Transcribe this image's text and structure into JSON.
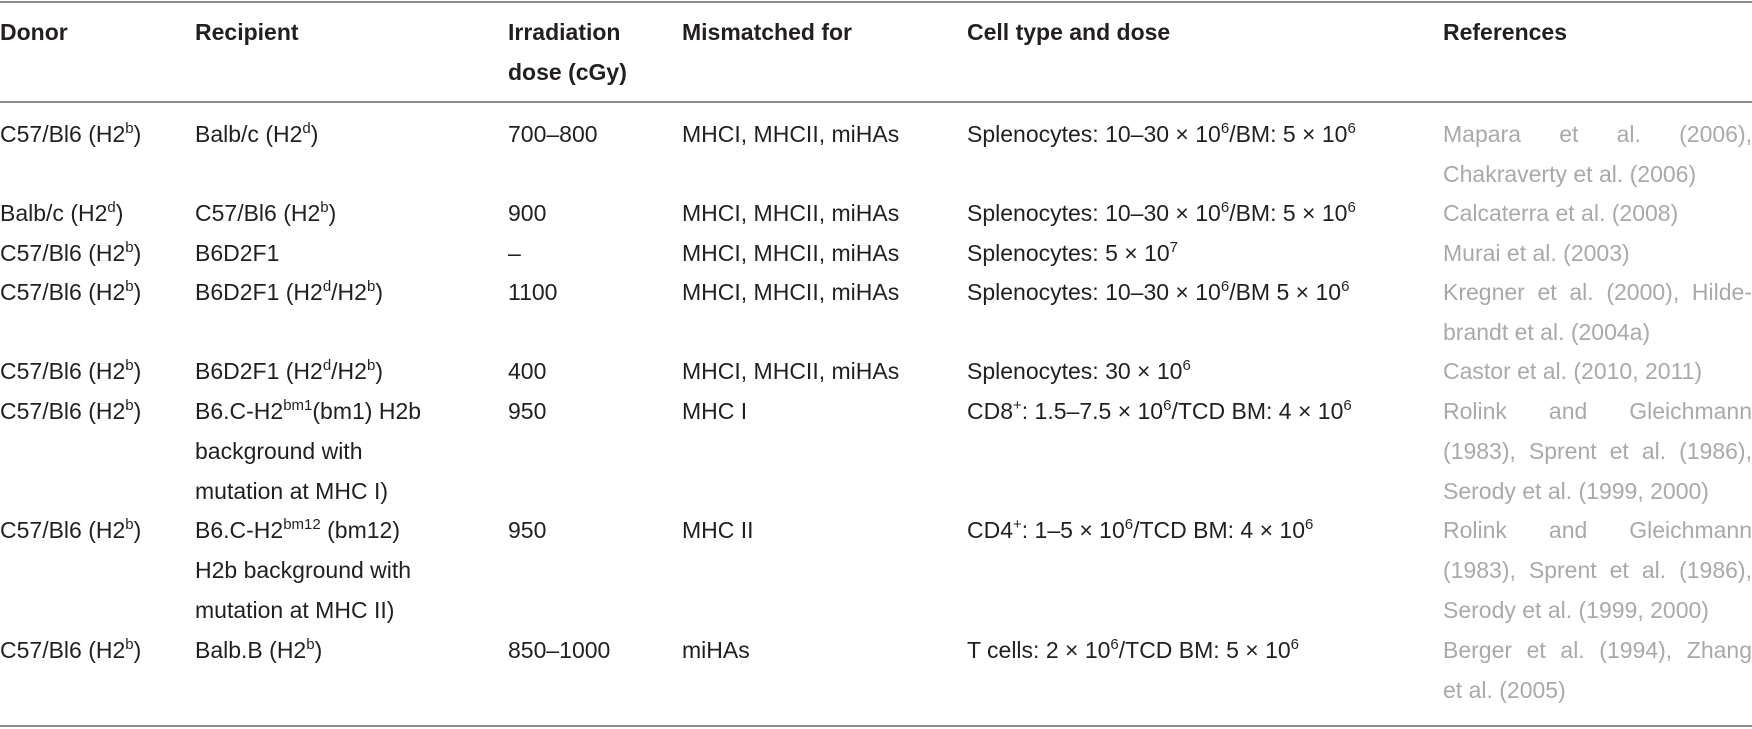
{
  "headers": {
    "donor": "Donor",
    "recipient": "Recipient",
    "irradiation_line1": "Irradiation",
    "irradiation_line2": "dose (cGy)",
    "mismatched": "Mismatched for",
    "cell_type": "Cell type and dose",
    "references": "References"
  },
  "rows": [
    {
      "donor": "C57/Bl6 (H2",
      "donor_sup": "b",
      "donor_end": ")",
      "recipient": "Balb/c (H2",
      "recipient_sup": "d",
      "recipient_end": ")",
      "dose": "700–800",
      "mismatch": "MHCI, MHCII, miHAs",
      "cell": "Splenocytes: 10–30 × 10",
      "cell_sup1": "6",
      "cell_mid": "/BM: 5 × 10",
      "cell_sup2": "6",
      "ref_line1_a": "Mapara",
      "ref_line1_b": "et",
      "ref_line1_c": "al.",
      "ref_line1_d": "(2006),",
      "ref_line2": "Chakraverty et al. (2006)"
    },
    {
      "donor": "Balb/c (H2",
      "donor_sup": "d",
      "donor_end": ")",
      "recipient": "C57/Bl6 (H2",
      "recipient_sup": "b",
      "recipient_end": ")",
      "dose": "900",
      "mismatch": "MHCI, MHCII, miHAs",
      "cell": "Splenocytes: 10–30 × 10",
      "cell_sup1": "6",
      "cell_mid": "/BM: 5 × 10",
      "cell_sup2": "6",
      "ref_line1": "Calcaterra et al. (2008)"
    },
    {
      "donor": "C57/Bl6 (H2",
      "donor_sup": "b",
      "donor_end": ")",
      "recipient": "B6D2F1",
      "dose": "–",
      "mismatch": "MHCI, MHCII, miHAs",
      "cell": "Splenocytes: 5 × 10",
      "cell_sup1": "7",
      "ref_line1": "Murai et al. (2003)"
    },
    {
      "donor": "C57/Bl6 (H2",
      "donor_sup": "b",
      "donor_end": ")",
      "recipient": "B6D2F1 (H2",
      "recipient_sup": "d",
      "recipient_mid": "/H2",
      "recipient_sup2": "b",
      "recipient_end": ")",
      "dose": "1100",
      "mismatch": "MHCI, MHCII, miHAs",
      "cell": "Splenocytes: 10–30 × 10",
      "cell_sup1": "6",
      "cell_mid": "/BM 5 × 10",
      "cell_sup2": "6",
      "ref_line1_a": "Kregner et al. (2000),",
      "ref_line1_b": "Hilde-",
      "ref_line2": "brandt et al. (2004a)"
    },
    {
      "donor": "C57/Bl6 (H2",
      "donor_sup": "b",
      "donor_end": ")",
      "recipient": "B6D2F1 (H2",
      "recipient_sup": "d",
      "recipient_mid": "/H2",
      "recipient_sup2": "b",
      "recipient_end": ")",
      "dose": "400",
      "mismatch": "MHCI, MHCII, miHAs",
      "cell": "Splenocytes: 30 × 10",
      "cell_sup1": "6",
      "ref_line1": "Castor et al. (2010, 2011)"
    },
    {
      "donor": "C57/Bl6 (H2",
      "donor_sup": "b",
      "donor_end": ")",
      "recipient_line1": "B6.C-H2",
      "recipient_sup": "bm1",
      "recipient_line1_end": "(bm1) H2b",
      "recipient_line2": "background with",
      "recipient_line3": "mutation at MHC I)",
      "dose": "950",
      "mismatch": "MHC I",
      "cell_a": "CD8",
      "cell_sup0": "+",
      "cell": ": 1.5–7.5 × 10",
      "cell_sup1": "6",
      "cell_mid": "/TCD BM: 4 × 10",
      "cell_sup2": "6",
      "ref_line1_a": "Rolink",
      "ref_line1_b": "and",
      "ref_line1_c": "Gleichmann",
      "ref_line2_a": "(1983),",
      "ref_line2_b": "Sprent et al. (1986),",
      "ref_line3": "Serody et al. (1999, 2000)"
    },
    {
      "donor": "C57/Bl6 (H2",
      "donor_sup": "b",
      "donor_end": ")",
      "recipient_line1": "B6.C-H2",
      "recipient_sup": "bm12",
      "recipient_line1_end": " (bm12)",
      "recipient_line2": "H2b background with",
      "recipient_line3": "mutation at MHC II)",
      "dose": "950",
      "mismatch": "MHC II",
      "cell_a": "CD4",
      "cell_sup0": "+",
      "cell": ": 1–5 × 10",
      "cell_sup1": "6",
      "cell_mid": "/TCD BM: 4 × 10",
      "cell_sup2": "6",
      "ref_line1_a": "Rolink",
      "ref_line1_b": "and",
      "ref_line1_c": "Gleichmann",
      "ref_line2_a": "(1983),",
      "ref_line2_b": "Sprent et al. (1986),",
      "ref_line3": "Serody et al. (1999, 2000)"
    },
    {
      "donor": "C57/Bl6 (H2",
      "donor_sup": "b",
      "donor_end": ")",
      "recipient": "Balb.B (H2",
      "recipient_sup": "b",
      "recipient_end": ")",
      "dose": "850–1000",
      "mismatch": "miHAs",
      "cell": "T cells: 2 × 10",
      "cell_sup1": "6",
      "cell_mid": "/TCD BM: 5 × 10",
      "cell_sup2": "6",
      "ref_line1_a": "Berger et al. (1994),",
      "ref_line1_b": "Zhang",
      "ref_line2": "et al. (2005)"
    }
  ],
  "colors": {
    "text": "#231f20",
    "reference_text": "#a9a9a9",
    "rule": "#8c8c8c"
  }
}
